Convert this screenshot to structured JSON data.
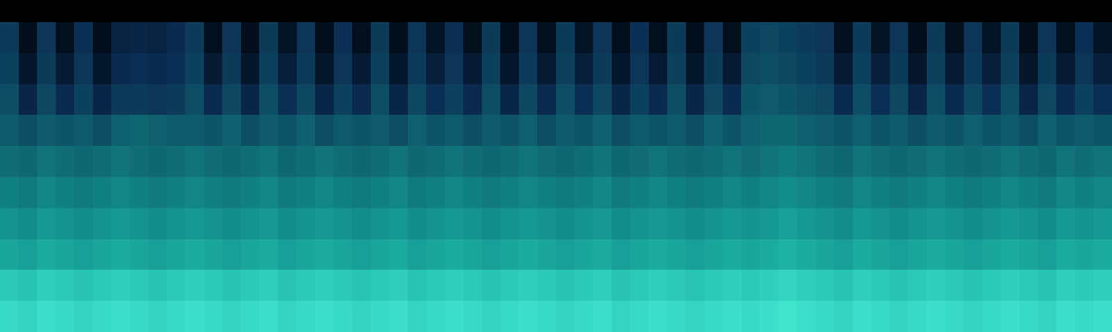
{
  "chart_data": {
    "type": "heatmap",
    "tick_labels": false,
    "zlim": [
      0,
      100
    ],
    "cells": [
      [
        92,
        90,
        94,
        92,
        90,
        92,
        94,
        92,
        90,
        92,
        94,
        92,
        90,
        92,
        94,
        90,
        92,
        94,
        92,
        90,
        92,
        94,
        90,
        92,
        94,
        92,
        90,
        92,
        94,
        92,
        90,
        92,
        94,
        90,
        92,
        94,
        92,
        90,
        92,
        94,
        92,
        94,
        96,
        94,
        92,
        90,
        94,
        92,
        90,
        92,
        94,
        92,
        90,
        92,
        94,
        92,
        90,
        94,
        92,
        94
      ],
      [
        86,
        84,
        88,
        86,
        84,
        86,
        88,
        86,
        84,
        86,
        88,
        86,
        84,
        86,
        88,
        84,
        86,
        88,
        86,
        84,
        86,
        88,
        84,
        86,
        88,
        86,
        84,
        86,
        88,
        86,
        84,
        86,
        88,
        84,
        86,
        88,
        86,
        84,
        86,
        88,
        86,
        88,
        90,
        88,
        86,
        84,
        88,
        86,
        84,
        86,
        88,
        86,
        84,
        86,
        88,
        86,
        84,
        88,
        86,
        88
      ],
      [
        74,
        72,
        76,
        74,
        72,
        74,
        76,
        74,
        72,
        74,
        76,
        74,
        72,
        74,
        76,
        72,
        74,
        76,
        74,
        72,
        74,
        76,
        72,
        74,
        76,
        74,
        72,
        74,
        76,
        74,
        72,
        74,
        76,
        72,
        74,
        76,
        74,
        72,
        74,
        76,
        74,
        76,
        78,
        76,
        74,
        72,
        76,
        74,
        72,
        74,
        76,
        74,
        72,
        74,
        76,
        74,
        72,
        76,
        74,
        76
      ],
      [
        68,
        66,
        70,
        68,
        66,
        68,
        70,
        68,
        66,
        68,
        70,
        68,
        66,
        68,
        70,
        66,
        68,
        70,
        68,
        66,
        68,
        70,
        66,
        68,
        70,
        68,
        66,
        68,
        70,
        68,
        66,
        68,
        70,
        66,
        68,
        70,
        68,
        66,
        68,
        70,
        68,
        70,
        72,
        70,
        68,
        66,
        70,
        68,
        66,
        68,
        70,
        68,
        66,
        68,
        70,
        68,
        66,
        70,
        68,
        70
      ],
      [
        62,
        60,
        64,
        62,
        60,
        62,
        64,
        62,
        60,
        62,
        64,
        62,
        60,
        62,
        64,
        60,
        62,
        64,
        62,
        60,
        62,
        64,
        60,
        62,
        64,
        62,
        60,
        62,
        64,
        62,
        60,
        62,
        64,
        60,
        62,
        64,
        62,
        60,
        62,
        64,
        62,
        64,
        66,
        64,
        62,
        60,
        64,
        62,
        60,
        62,
        64,
        62,
        60,
        62,
        64,
        62,
        60,
        64,
        62,
        64
      ],
      [
        56,
        54,
        58,
        56,
        54,
        56,
        58,
        56,
        54,
        56,
        58,
        56,
        54,
        56,
        58,
        54,
        56,
        58,
        56,
        54,
        56,
        58,
        54,
        56,
        58,
        56,
        54,
        56,
        58,
        56,
        54,
        56,
        58,
        54,
        56,
        58,
        56,
        54,
        56,
        58,
        56,
        58,
        60,
        58,
        56,
        54,
        58,
        56,
        54,
        56,
        58,
        56,
        54,
        56,
        58,
        56,
        54,
        58,
        56,
        58
      ],
      [
        50,
        46,
        50,
        48,
        50,
        46,
        52,
        54,
        52,
        50,
        50,
        48,
        52,
        46,
        50,
        48,
        52,
        46,
        50,
        48,
        50,
        46,
        52,
        48,
        50,
        46,
        50,
        48,
        52,
        46,
        50,
        48,
        52,
        46,
        50,
        48,
        50,
        46,
        52,
        48,
        52,
        54,
        54,
        52,
        50,
        48,
        52,
        48,
        50,
        46,
        50,
        48,
        52,
        48,
        50,
        46,
        52,
        48,
        50,
        48
      ],
      [
        46,
        32,
        44,
        34,
        42,
        32,
        40,
        40,
        38,
        40,
        46,
        34,
        44,
        32,
        46,
        36,
        44,
        32,
        42,
        34,
        46,
        32,
        44,
        36,
        42,
        34,
        46,
        32,
        44,
        34,
        46,
        36,
        44,
        32,
        42,
        34,
        46,
        32,
        44,
        34,
        48,
        50,
        48,
        46,
        44,
        34,
        46,
        36,
        44,
        32,
        46,
        34,
        44,
        36,
        46,
        32,
        44,
        34,
        42,
        36
      ],
      [
        42,
        24,
        40,
        26,
        38,
        24,
        34,
        36,
        34,
        36,
        42,
        26,
        40,
        24,
        42,
        28,
        40,
        24,
        38,
        26,
        42,
        24,
        40,
        28,
        38,
        26,
        42,
        24,
        40,
        26,
        42,
        28,
        40,
        24,
        38,
        26,
        42,
        24,
        40,
        26,
        44,
        46,
        44,
        42,
        40,
        26,
        42,
        28,
        40,
        24,
        42,
        26,
        40,
        28,
        42,
        24,
        40,
        26,
        38,
        28
      ],
      [
        40,
        18,
        38,
        20,
        36,
        18,
        30,
        32,
        30,
        34,
        40,
        20,
        38,
        18,
        40,
        22,
        38,
        18,
        36,
        20,
        40,
        18,
        38,
        22,
        36,
        20,
        40,
        18,
        38,
        20,
        40,
        22,
        38,
        18,
        36,
        20,
        40,
        18,
        38,
        20,
        42,
        44,
        42,
        40,
        38,
        20,
        40,
        22,
        38,
        18,
        40,
        20,
        38,
        22,
        40,
        18,
        38,
        20,
        36,
        22
      ]
    ]
  }
}
